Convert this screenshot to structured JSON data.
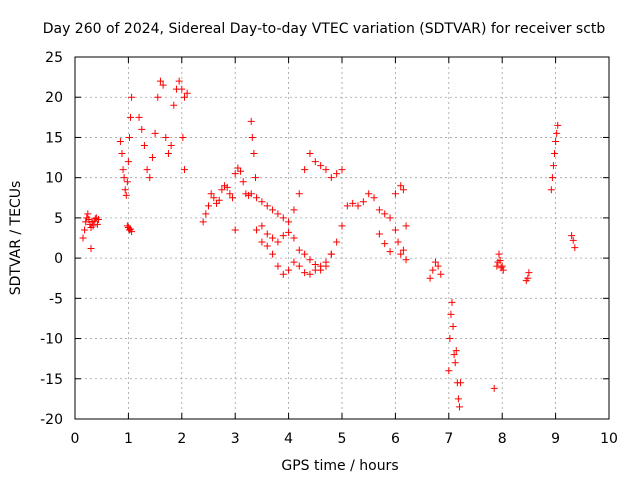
{
  "chart_data": {
    "type": "scatter",
    "title": "Day 260 of 2024, Sidereal Day-to-day VTEC variation (SDTVAR) for receiver sctb",
    "xlabel": "GPS time / hours",
    "ylabel": "SDTVAR / TECUs",
    "xlim": [
      0,
      10
    ],
    "ylim": [
      -20,
      25
    ],
    "xticks": [
      0,
      1,
      2,
      3,
      4,
      5,
      6,
      7,
      8,
      9,
      10
    ],
    "yticks": [
      25,
      20,
      15,
      10,
      5,
      0,
      -5,
      -10,
      -15,
      -20
    ],
    "grid": true,
    "marker": "plus",
    "color": "#ff0000",
    "series": [
      {
        "name": "SDTVAR",
        "x": [
          0.15,
          0.18,
          0.2,
          0.22,
          0.24,
          0.26,
          0.28,
          0.3,
          0.32,
          0.34,
          0.36,
          0.38,
          0.4,
          0.42,
          0.44,
          0.3,
          0.85,
          0.88,
          0.9,
          0.92,
          0.94,
          0.96,
          0.98,
          1.0,
          1.02,
          1.04,
          1.06,
          0.98,
          1.0,
          1.02,
          1.04,
          1.06,
          1.2,
          1.25,
          1.3,
          1.35,
          1.4,
          1.45,
          1.5,
          1.55,
          1.6,
          1.65,
          1.7,
          1.75,
          1.8,
          1.85,
          1.9,
          1.95,
          2.0,
          2.05,
          2.1,
          2.02,
          2.05,
          2.4,
          2.45,
          2.5,
          2.55,
          2.6,
          2.65,
          2.7,
          2.75,
          2.8,
          2.85,
          2.9,
          2.95,
          3.0,
          3.05,
          3.1,
          3.15,
          3.2,
          3.25,
          3.3,
          3.32,
          3.35,
          3.38,
          3.0,
          3.3,
          3.4,
          3.5,
          3.6,
          3.7,
          3.8,
          3.9,
          4.0,
          4.1,
          4.2,
          4.3,
          4.4,
          4.5,
          4.6,
          4.7,
          4.8,
          4.9,
          5.0,
          5.1,
          5.2,
          5.3,
          5.4,
          5.5,
          5.6,
          5.7,
          5.8,
          5.9,
          6.0,
          6.1,
          6.15,
          6.2,
          3.4,
          3.5,
          3.6,
          3.7,
          3.8,
          3.9,
          4.0,
          4.1,
          4.2,
          4.3,
          4.4,
          4.5,
          4.6,
          4.7,
          4.8,
          4.9,
          5.0,
          3.5,
          3.6,
          3.7,
          3.8,
          3.9,
          4.0,
          4.1,
          4.2,
          4.3,
          4.4,
          4.5,
          4.6,
          4.7,
          4.8,
          5.7,
          5.8,
          5.9,
          6.0,
          6.05,
          6.1,
          6.15,
          6.2,
          6.65,
          6.7,
          6.75,
          6.8,
          6.85,
          7.0,
          7.02,
          7.04,
          7.06,
          7.08,
          7.1,
          7.12,
          7.14,
          7.16,
          7.18,
          7.2,
          7.22,
          7.85,
          7.9,
          7.92,
          7.94,
          7.96,
          7.98,
          8.0,
          8.02,
          8.45,
          8.48,
          8.5,
          8.92,
          8.94,
          8.96,
          8.98,
          9.0,
          9.02,
          9.04,
          9.3,
          9.33,
          9.36
        ],
        "y": [
          2.5,
          3.5,
          4.5,
          5.0,
          5.5,
          4.8,
          4.2,
          3.8,
          4.5,
          4.0,
          4.6,
          4.9,
          5.0,
          4.2,
          4.8,
          1.2,
          14.5,
          13.0,
          11.0,
          10.0,
          8.5,
          7.8,
          9.5,
          12.0,
          15.0,
          17.5,
          20.0,
          4.0,
          3.8,
          3.5,
          3.6,
          3.3,
          17.5,
          16.0,
          14.0,
          11.0,
          10.0,
          12.5,
          15.5,
          20.0,
          22.0,
          21.5,
          15.0,
          13.0,
          14.0,
          19.0,
          21.0,
          22.0,
          21.0,
          20.0,
          20.5,
          15.0,
          11.0,
          4.5,
          5.5,
          6.5,
          8.0,
          7.5,
          6.8,
          7.2,
          8.5,
          9.0,
          8.8,
          8.0,
          7.5,
          10.5,
          11.2,
          10.8,
          9.5,
          8.0,
          7.8,
          17.0,
          15.0,
          13.0,
          10.0,
          3.5,
          8.0,
          7.5,
          7.0,
          6.5,
          6.0,
          5.5,
          5.0,
          4.5,
          6.0,
          8.0,
          11.0,
          13.0,
          12.0,
          11.5,
          11.0,
          10.0,
          10.5,
          11.0,
          6.5,
          6.8,
          6.5,
          7.0,
          8.0,
          7.5,
          6.0,
          5.5,
          5.0,
          8.0,
          9.0,
          8.5,
          4.0,
          3.5,
          4.0,
          3.0,
          2.5,
          2.0,
          2.8,
          3.2,
          2.5,
          1.0,
          0.5,
          -0.2,
          -0.8,
          -1.5,
          -1.0,
          0.5,
          2.0,
          4.0,
          2.0,
          1.5,
          0.5,
          -1.0,
          -2.0,
          -1.5,
          -0.5,
          -1.0,
          -1.8,
          -2.0,
          -1.5,
          -1.0,
          -0.5,
          0.5,
          3.0,
          1.8,
          0.8,
          3.5,
          2.0,
          0.5,
          1.0,
          -0.2,
          -2.5,
          -1.5,
          -0.5,
          -1.0,
          -2.0,
          -14.0,
          -10.0,
          -7.0,
          -5.5,
          -8.5,
          -12.0,
          -13.0,
          -11.5,
          -15.5,
          -17.5,
          -18.5,
          -15.5,
          -16.2,
          -1.0,
          -0.5,
          0.5,
          -0.3,
          -1.2,
          -1.0,
          -1.5,
          -2.8,
          -2.5,
          -1.8,
          8.5,
          10.0,
          11.5,
          13.0,
          14.5,
          15.5,
          16.5,
          2.8,
          2.2,
          1.3
        ]
      }
    ]
  }
}
